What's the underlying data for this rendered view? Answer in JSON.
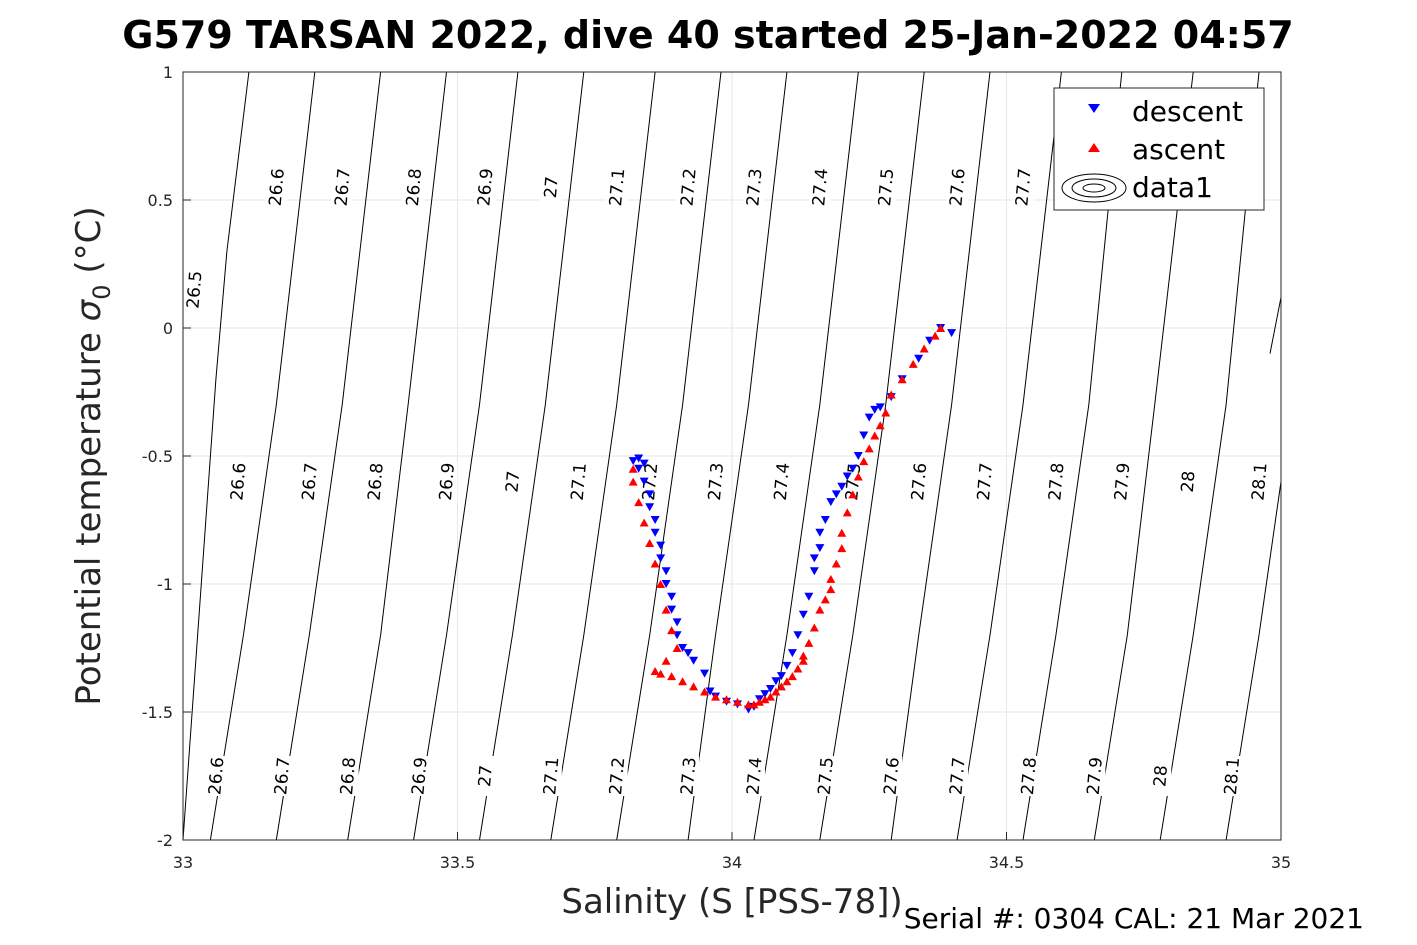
{
  "chart_data": {
    "type": "scatter",
    "title": "G579 TARSAN 2022, dive 40 started 25-Jan-2022 04:57",
    "xlabel": "Salinity (S [PSS-78])",
    "ylabel_main": "Potential temperature ",
    "ylabel_sym": "σ",
    "ylabel_sub": "0",
    "ylabel_unit": " (°C)",
    "footer": "Serial #: 0304  CAL: 21 Mar 2021",
    "xlim": [
      33,
      35
    ],
    "ylim": [
      -2,
      1
    ],
    "xticks": [
      "33",
      "33.5",
      "34",
      "34.5",
      "35"
    ],
    "yticks": [
      "-2",
      "-1.5",
      "-1",
      "-0.5",
      "0",
      "0.5",
      "1"
    ],
    "grid": true,
    "legend": {
      "placement": "top-right",
      "entries": [
        "descent",
        "ascent",
        "data1"
      ]
    },
    "contours": [
      {
        "x": [
          33.0,
          33.06,
          33.08,
          33.12
        ],
        "y": [
          -2,
          -0.2,
          0.3,
          1
        ],
        "label_text": "26.5",
        "label_pos": [
          [
            33.02,
            0.15
          ]
        ]
      },
      {
        "x": [
          33.05,
          33.11,
          33.17,
          33.24
        ],
        "y": [
          -2,
          -1.2,
          -0.3,
          1
        ],
        "label_text": "26.6",
        "label_pos": [
          [
            33.06,
            -1.75
          ],
          [
            33.1,
            -0.6
          ],
          [
            33.17,
            0.55
          ]
        ]
      },
      {
        "x": [
          33.17,
          33.23,
          33.29,
          33.36
        ],
        "y": [
          -2,
          -1.2,
          -0.3,
          1
        ],
        "label_text": "26.7",
        "label_pos": [
          [
            33.18,
            -1.75
          ],
          [
            33.23,
            -0.6
          ],
          [
            33.29,
            0.55
          ]
        ]
      },
      {
        "x": [
          33.3,
          33.36,
          33.41,
          33.48
        ],
        "y": [
          -2,
          -1.2,
          -0.3,
          1
        ],
        "label_text": "26.8",
        "label_pos": [
          [
            33.3,
            -1.75
          ],
          [
            33.35,
            -0.6
          ],
          [
            33.42,
            0.55
          ]
        ]
      },
      {
        "x": [
          33.42,
          33.48,
          33.54,
          33.61
        ],
        "y": [
          -2,
          -1.2,
          -0.3,
          1
        ],
        "label_text": "26.9",
        "label_pos": [
          [
            33.43,
            -1.75
          ],
          [
            33.48,
            -0.6
          ],
          [
            33.55,
            0.55
          ]
        ]
      },
      {
        "x": [
          33.54,
          33.6,
          33.66,
          33.73
        ],
        "y": [
          -2,
          -1.2,
          -0.3,
          1
        ],
        "label_text": "27",
        "label_pos": [
          [
            33.55,
            -1.75
          ],
          [
            33.6,
            -0.6
          ],
          [
            33.67,
            0.55
          ]
        ]
      },
      {
        "x": [
          33.67,
          33.73,
          33.79,
          33.86
        ],
        "y": [
          -2,
          -1.2,
          -0.3,
          1
        ],
        "label_text": "27.1",
        "label_pos": [
          [
            33.67,
            -1.75
          ],
          [
            33.72,
            -0.6
          ],
          [
            33.79,
            0.55
          ]
        ]
      },
      {
        "x": [
          33.79,
          33.85,
          33.91,
          33.98
        ],
        "y": [
          -2,
          -1.2,
          -0.3,
          1
        ],
        "label_text": "27.2",
        "label_pos": [
          [
            33.79,
            -1.75
          ],
          [
            33.85,
            -0.6
          ],
          [
            33.92,
            0.55
          ]
        ]
      },
      {
        "x": [
          33.92,
          33.97,
          34.03,
          34.1
        ],
        "y": [
          -2,
          -1.2,
          -0.3,
          1
        ],
        "label_text": "27.3",
        "label_pos": [
          [
            33.92,
            -1.75
          ],
          [
            33.97,
            -0.6
          ],
          [
            34.04,
            0.55
          ]
        ]
      },
      {
        "x": [
          34.04,
          34.1,
          34.16,
          34.23
        ],
        "y": [
          -2,
          -1.2,
          -0.3,
          1
        ],
        "label_text": "27.4",
        "label_pos": [
          [
            34.04,
            -1.75
          ],
          [
            34.09,
            -0.6
          ],
          [
            34.16,
            0.55
          ]
        ]
      },
      {
        "x": [
          34.16,
          34.22,
          34.28,
          34.35
        ],
        "y": [
          -2,
          -1.2,
          -0.3,
          1
        ],
        "label_text": "27.5",
        "label_pos": [
          [
            34.17,
            -1.75
          ],
          [
            34.22,
            -0.6
          ],
          [
            34.28,
            0.55
          ]
        ]
      },
      {
        "x": [
          34.29,
          34.34,
          34.4,
          34.47
        ],
        "y": [
          -2,
          -1.2,
          -0.3,
          1
        ],
        "label_text": "27.6",
        "label_pos": [
          [
            34.29,
            -1.75
          ],
          [
            34.34,
            -0.6
          ],
          [
            34.41,
            0.55
          ]
        ]
      },
      {
        "x": [
          34.41,
          34.47,
          34.53,
          34.6
        ],
        "y": [
          -2,
          -1.2,
          -0.3,
          1
        ],
        "label_text": "27.7",
        "label_pos": [
          [
            34.41,
            -1.75
          ],
          [
            34.46,
            -0.6
          ],
          [
            34.53,
            0.55
          ]
        ]
      },
      {
        "x": [
          34.53,
          34.59,
          34.65,
          34.71
        ],
        "y": [
          -2,
          -1.2,
          -0.3,
          1
        ],
        "label_text": "27.8",
        "label_pos": [
          [
            34.54,
            -1.75
          ],
          [
            34.59,
            -0.6
          ]
        ]
      },
      {
        "x": [
          34.66,
          34.72,
          34.77,
          34.84
        ],
        "y": [
          -2,
          -1.2,
          -0.3,
          1
        ],
        "label_text": "27.9",
        "label_pos": [
          [
            34.66,
            -1.75
          ],
          [
            34.71,
            -0.6
          ]
        ]
      },
      {
        "x": [
          34.78,
          34.84,
          34.9,
          34.96
        ],
        "y": [
          -2,
          -1.2,
          -0.3,
          1
        ],
        "label_text": "28",
        "label_pos": [
          [
            34.78,
            -1.75
          ],
          [
            34.83,
            -0.6
          ]
        ]
      },
      {
        "x": [
          34.9,
          34.96,
          35.0
        ],
        "y": [
          -2,
          -1.2,
          -0.6
        ],
        "label_text": "28.1",
        "label_pos": [
          [
            34.91,
            -1.75
          ],
          [
            34.96,
            -0.6
          ]
        ]
      },
      {
        "x": [
          34.98,
          35.0
        ],
        "y": [
          -0.1,
          0.12
        ],
        "label_text": "",
        "label_pos": []
      }
    ],
    "series": [
      {
        "name": "descent",
        "color": "#0000ff",
        "marker": "triangle-down",
        "x": [
          34.4,
          34.38,
          34.36,
          34.34,
          34.31,
          34.29,
          34.27,
          34.26,
          34.25,
          34.24,
          34.23,
          34.22,
          34.21,
          34.2,
          34.19,
          34.18,
          34.17,
          34.16,
          34.16,
          34.15,
          34.15,
          34.14,
          34.13,
          34.12,
          34.11,
          34.1,
          34.09,
          34.08,
          34.07,
          34.06,
          34.05,
          34.04,
          34.03,
          34.01,
          33.99,
          33.97,
          33.96,
          33.95,
          33.93,
          33.92,
          33.91,
          33.9,
          33.9,
          33.89,
          33.89,
          33.88,
          33.88,
          33.87,
          33.87,
          33.86,
          33.86,
          33.85,
          33.85,
          33.84,
          33.83,
          33.82,
          33.83,
          33.84
        ],
        "y": [
          -0.02,
          0.0,
          -0.05,
          -0.12,
          -0.2,
          -0.27,
          -0.31,
          -0.32,
          -0.35,
          -0.42,
          -0.5,
          -0.55,
          -0.58,
          -0.62,
          -0.65,
          -0.68,
          -0.75,
          -0.8,
          -0.86,
          -0.9,
          -0.95,
          -1.05,
          -1.12,
          -1.2,
          -1.27,
          -1.32,
          -1.36,
          -1.38,
          -1.41,
          -1.43,
          -1.45,
          -1.48,
          -1.49,
          -1.47,
          -1.46,
          -1.44,
          -1.42,
          -1.35,
          -1.3,
          -1.27,
          -1.25,
          -1.2,
          -1.15,
          -1.1,
          -1.05,
          -1.0,
          -0.95,
          -0.9,
          -0.85,
          -0.8,
          -0.75,
          -0.7,
          -0.65,
          -0.6,
          -0.55,
          -0.52,
          -0.51,
          -0.53
        ]
      },
      {
        "name": "ascent",
        "color": "#ff0000",
        "marker": "triangle-up",
        "x": [
          34.38,
          34.37,
          34.35,
          34.33,
          34.31,
          34.29,
          34.28,
          34.27,
          34.26,
          34.25,
          34.24,
          34.23,
          34.22,
          34.21,
          34.2,
          34.2,
          34.19,
          34.18,
          34.18,
          34.17,
          34.16,
          34.15,
          34.14,
          34.13,
          34.13,
          34.12,
          34.11,
          34.1,
          34.09,
          34.08,
          34.07,
          34.06,
          34.05,
          34.04,
          34.03,
          34.01,
          33.99,
          33.97,
          33.95,
          33.93,
          33.91,
          33.89,
          33.87,
          33.86,
          33.88,
          33.9,
          33.89,
          33.88,
          33.87,
          33.86,
          33.85,
          33.84,
          33.83,
          33.82,
          33.82
        ],
        "y": [
          0.0,
          -0.03,
          -0.08,
          -0.14,
          -0.2,
          -0.26,
          -0.33,
          -0.38,
          -0.42,
          -0.47,
          -0.52,
          -0.58,
          -0.65,
          -0.72,
          -0.8,
          -0.86,
          -0.92,
          -0.98,
          -1.02,
          -1.06,
          -1.1,
          -1.17,
          -1.23,
          -1.28,
          -1.3,
          -1.33,
          -1.36,
          -1.38,
          -1.4,
          -1.42,
          -1.44,
          -1.45,
          -1.46,
          -1.47,
          -1.47,
          -1.46,
          -1.45,
          -1.44,
          -1.42,
          -1.4,
          -1.38,
          -1.36,
          -1.35,
          -1.34,
          -1.3,
          -1.25,
          -1.18,
          -1.1,
          -1.0,
          -0.92,
          -0.84,
          -0.76,
          -0.68,
          -0.6,
          -0.55
        ]
      }
    ]
  }
}
